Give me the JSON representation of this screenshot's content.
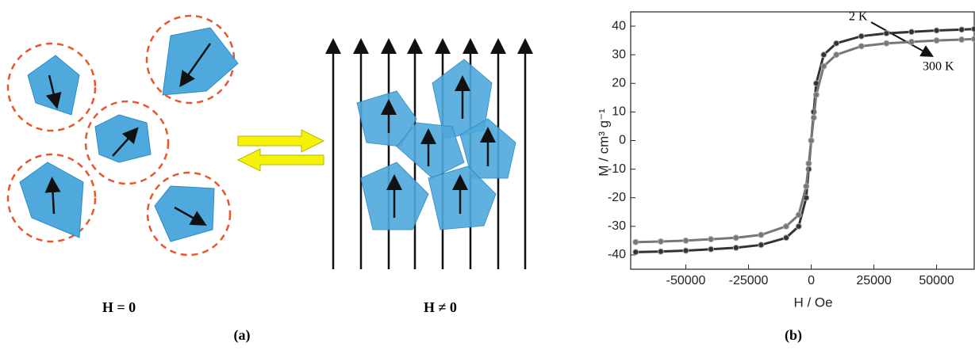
{
  "panel_a": {
    "left_label": "H = 0",
    "right_label": "H ≠ 0",
    "caption": "(a)"
  },
  "chart_data": {
    "type": "line",
    "caption": "(b)",
    "xlabel": "H / Oe",
    "ylabel": "M / cm³ g⁻¹",
    "x": [
      -70000,
      -60000,
      -50000,
      -40000,
      -30000,
      -20000,
      -10000,
      -5000,
      -2000,
      -1000,
      0,
      1000,
      2000,
      5000,
      10000,
      20000,
      30000,
      40000,
      50000,
      60000,
      65000
    ],
    "series": [
      {
        "name": "2 K",
        "color": "#333333",
        "values": [
          -39,
          -38.8,
          -38.5,
          -38,
          -37.5,
          -36.5,
          -34,
          -30,
          -20,
          -10,
          0,
          10,
          20,
          30,
          34,
          36.5,
          37.5,
          38,
          38.5,
          38.8,
          39
        ]
      },
      {
        "name": "300 K",
        "color": "#777777",
        "values": [
          -35.5,
          -35.3,
          -35,
          -34.5,
          -34,
          -33,
          -30,
          -26,
          -16,
          -8,
          0,
          8,
          16,
          26,
          30,
          33,
          34,
          34.5,
          35,
          35.3,
          35.5
        ]
      }
    ],
    "xlim": [
      -72000,
      65000
    ],
    "ylim": [
      -45,
      45
    ],
    "xticks": [
      -50000,
      -25000,
      0,
      25000,
      50000
    ],
    "yticks": [
      -40,
      -30,
      -20,
      -10,
      0,
      10,
      20,
      30,
      40
    ]
  }
}
